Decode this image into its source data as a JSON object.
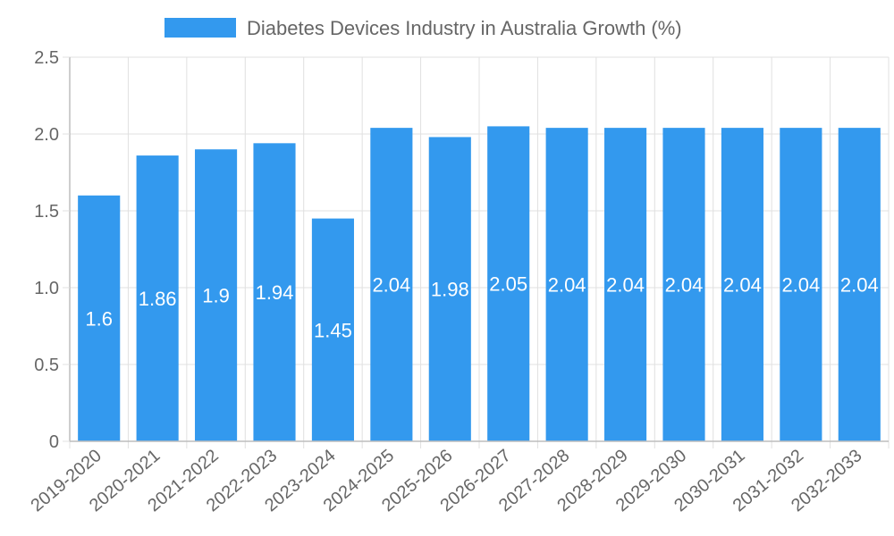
{
  "chart_data": {
    "type": "bar",
    "title": "",
    "legend": {
      "label": "Diabetes Devices Industry in Australia Growth (%)",
      "position": "top-center"
    },
    "categories": [
      "2019-2020",
      "2020-2021",
      "2021-2022",
      "2022-2023",
      "2023-2024",
      "2024-2025",
      "2025-2026",
      "2026-2027",
      "2027-2028",
      "2028-2029",
      "2029-2030",
      "2030-2031",
      "2031-2032",
      "2032-2033"
    ],
    "values": [
      1.6,
      1.86,
      1.9,
      1.94,
      1.45,
      2.04,
      1.98,
      2.05,
      2.04,
      2.04,
      2.04,
      2.04,
      2.04,
      2.04
    ],
    "data_labels": [
      "1.6",
      "1.86",
      "1.9",
      "1.94",
      "1.45",
      "2.04",
      "1.98",
      "2.05",
      "2.04",
      "2.04",
      "2.04",
      "2.04",
      "2.04",
      "2.04"
    ],
    "ylim": [
      0,
      2.5
    ],
    "yticks": [
      0,
      0.5,
      1.0,
      1.5,
      2.0,
      2.5
    ],
    "ytick_labels": [
      "0",
      "0.5",
      "1.0",
      "1.5",
      "2.0",
      "2.5"
    ],
    "xlabel": "",
    "ylabel": "",
    "grid": true,
    "colors": {
      "bar": "#3399ee",
      "grid": "#e0e0e0",
      "axis": "#bdbdbd",
      "text": "#666666"
    }
  }
}
